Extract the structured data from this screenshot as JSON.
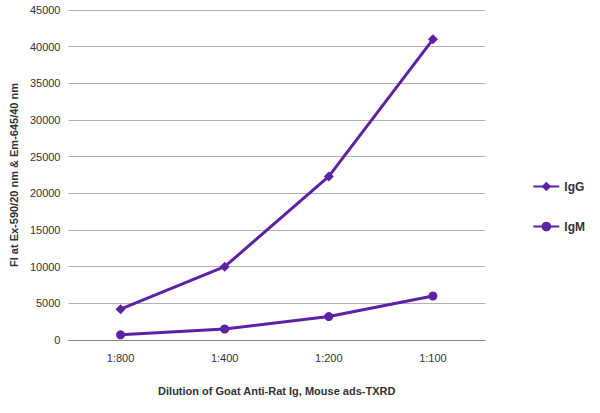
{
  "chart_data": {
    "type": "line",
    "x_label": "Dilution of Goat Anti-Rat Ig, Mouse ads-TXRD",
    "y_label": "FI at Ex-590/20 nm & Em-645/40 nm",
    "categories": [
      "1:800",
      "1:400",
      "1:200",
      "1:100"
    ],
    "series": [
      {
        "name": "IgG",
        "color": "#5c22a6",
        "marker": "diamond",
        "line_style": "solid",
        "values": [
          4200,
          10000,
          22300,
          41000
        ]
      },
      {
        "name": "IgM",
        "color": "#5c22a6",
        "marker": "circle",
        "line_style": "solid",
        "values": [
          700,
          1500,
          3200,
          6000
        ]
      }
    ],
    "ylim": [
      0,
      45000
    ],
    "yticks": [
      0,
      5000,
      10000,
      15000,
      20000,
      25000,
      30000,
      35000,
      40000,
      45000
    ],
    "grid": true,
    "legend": "right"
  }
}
